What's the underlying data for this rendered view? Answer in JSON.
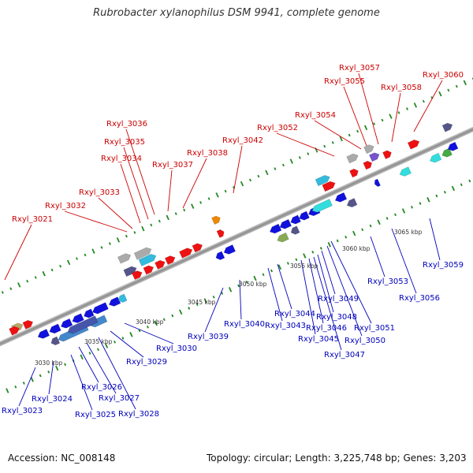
{
  "title": "Rubrobacter xylanophilus DSM 9941, complete genome",
  "accession": "Accession: NC_008148",
  "summary": "Topology: circular; Length: 3,225,748 bp; Genes: 3,203",
  "colors": {
    "forward": "#ee1111",
    "reverse": "#1111dd",
    "label_forward": "#cc0000",
    "label_reverse": "#0000bb",
    "backbone": "#999999",
    "tick": "#228822"
  },
  "kbp_labels": [
    "3030 kbp",
    "3035 kbp",
    "3040 kbp",
    "3045 kbp",
    "3050 kbp",
    "3055 kbp",
    "3060 kbp",
    "3065 kbp"
  ],
  "forward_labels": [
    "Rxyl_3021",
    "Rxyl_3032",
    "Rxyl_3033",
    "Rxyl_3034",
    "Rxyl_3035",
    "Rxyl_3036",
    "Rxyl_3037",
    "Rxyl_3038",
    "Rxyl_3042",
    "Rxyl_3052",
    "Rxyl_3054",
    "Rxyl_3055",
    "Rxyl_3057",
    "Rxyl_3058",
    "Rxyl_3060"
  ],
  "reverse_labels": [
    "Rxyl_3023",
    "Rxyl_3024",
    "Rxyl_3025",
    "Rxyl_3026",
    "Rxyl_3027",
    "Rxyl_3028",
    "Rxyl_3029",
    "Rxyl_3030",
    "Rxyl_3039",
    "Rxyl_3040",
    "Rxyl_3043",
    "Rxyl_3044",
    "Rxyl_3045",
    "Rxyl_3046",
    "Rxyl_3047",
    "Rxyl_3048",
    "Rxyl_3049",
    "Rxyl_3050",
    "Rxyl_3051",
    "Rxyl_3053",
    "Rxyl_3056",
    "Rxyl_3059"
  ]
}
